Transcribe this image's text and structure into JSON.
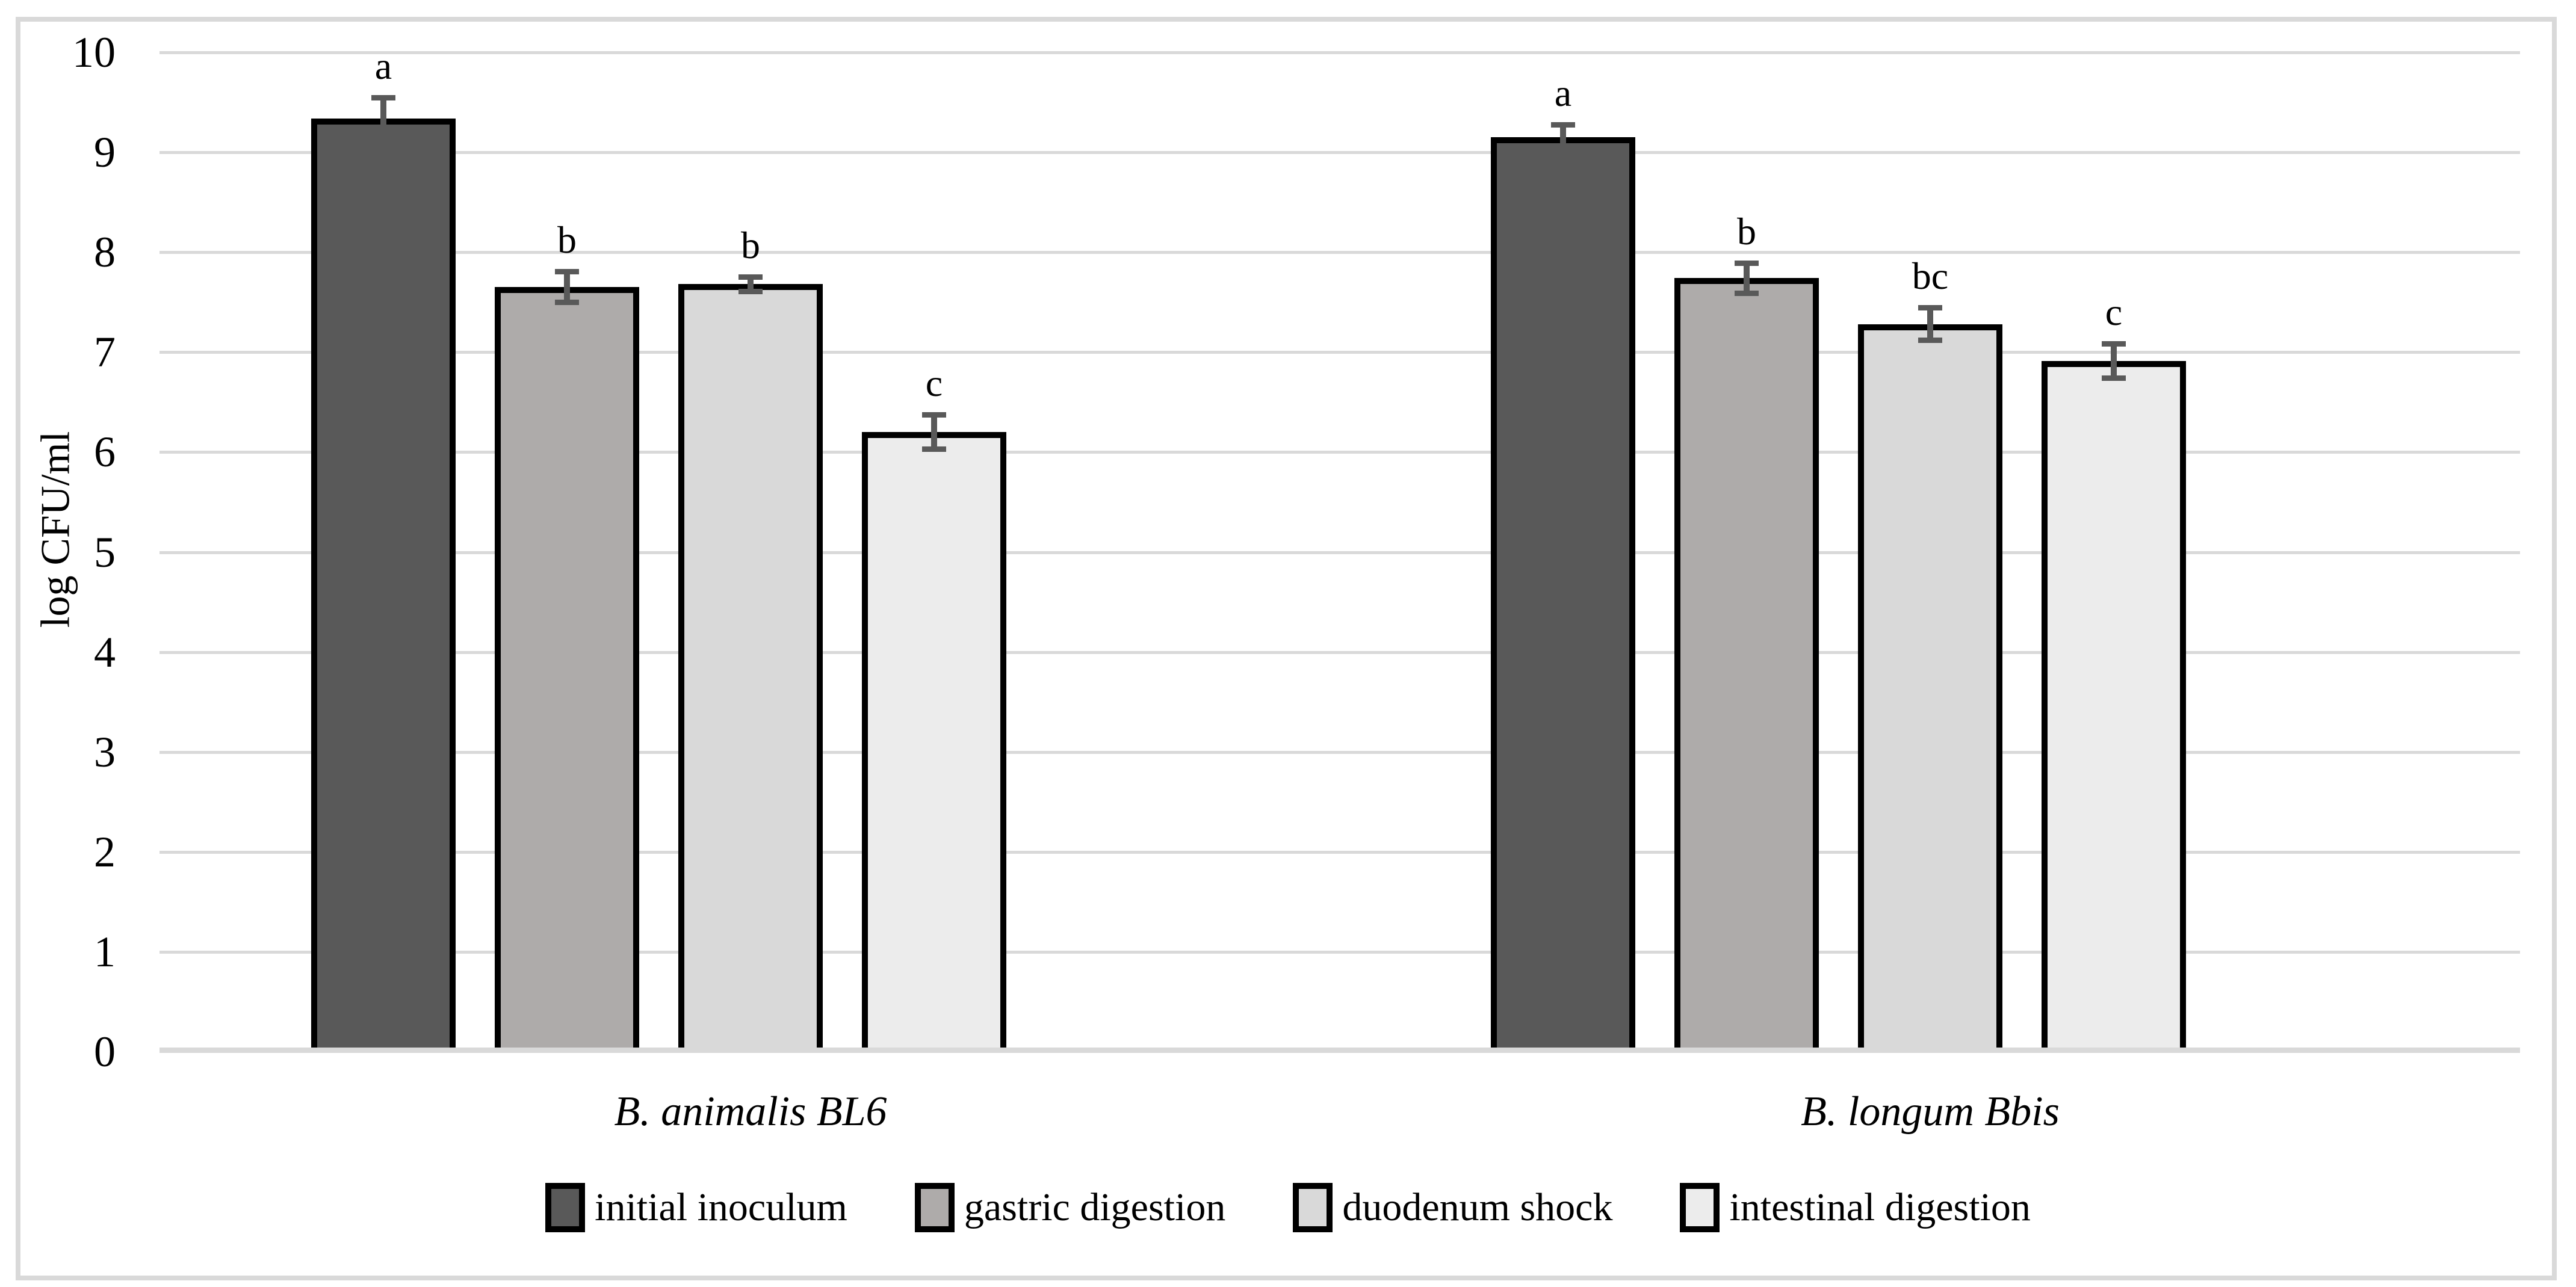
{
  "chart_data": {
    "type": "bar",
    "title": "",
    "ylabel": "log CFU/ml",
    "xlabel": "",
    "ylim": [
      0,
      10
    ],
    "yticks": [
      0,
      1,
      2,
      3,
      4,
      5,
      6,
      7,
      8,
      9,
      10
    ],
    "grid": true,
    "legend_position": "bottom-center",
    "categories": [
      "B. animalis BL6",
      "B. longum Bbis"
    ],
    "series": [
      {
        "name": "initial inoculum",
        "fill": "#595959",
        "values": [
          9.34,
          9.15
        ],
        "errors": [
          0.23,
          0.15
        ],
        "letters": [
          "a",
          "a"
        ]
      },
      {
        "name": "gastric digestion",
        "fill": "#aeabaa",
        "values": [
          7.65,
          7.74
        ],
        "errors": [
          0.18,
          0.18
        ],
        "letters": [
          "b",
          "b"
        ]
      },
      {
        "name": "duodenum shock",
        "fill": "#d9d9d9",
        "values": [
          7.68,
          7.28
        ],
        "errors": [
          0.1,
          0.19
        ],
        "letters": [
          "b",
          "bc"
        ]
      },
      {
        "name": "intestinal digestion",
        "fill": "#ececec",
        "values": [
          6.2,
          6.91
        ],
        "errors": [
          0.2,
          0.2
        ],
        "letters": [
          "c",
          "c"
        ]
      }
    ],
    "error_bar_color": "#595959",
    "bar_border_color": "#000000"
  }
}
